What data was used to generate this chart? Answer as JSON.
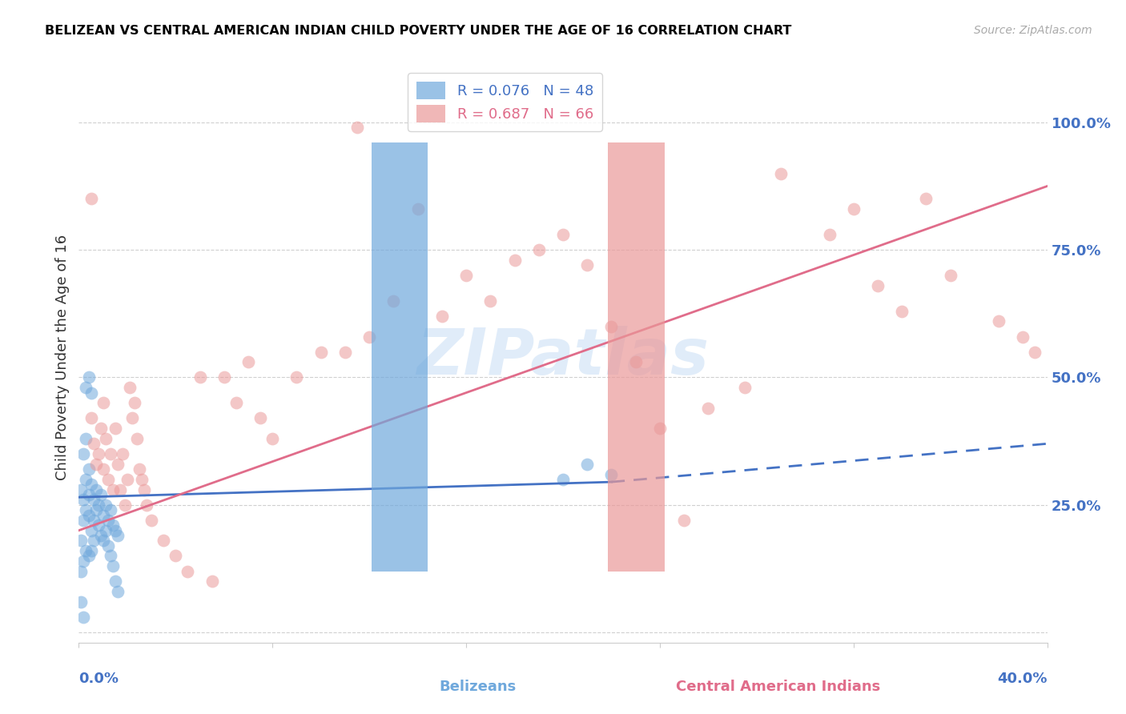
{
  "title": "BELIZEAN VS CENTRAL AMERICAN INDIAN CHILD POVERTY UNDER THE AGE OF 16 CORRELATION CHART",
  "source": "Source: ZipAtlas.com",
  "ylabel": "Child Poverty Under the Age of 16",
  "xlim": [
    0.0,
    0.4
  ],
  "ylim": [
    -0.02,
    1.1
  ],
  "yticks": [
    0.0,
    0.25,
    0.5,
    0.75,
    1.0
  ],
  "ytick_labels": [
    "",
    "25.0%",
    "50.0%",
    "75.0%",
    "100.0%"
  ],
  "watermark": "ZIPatlas",
  "belizean_color": "#6fa8dc",
  "cai_color": "#ea9999",
  "blue_line_color": "#4472c4",
  "pink_line_color": "#e06c8a",
  "axis_label_color": "#4472c4",
  "grid_color": "#d0d0d0",
  "background_color": "#ffffff",
  "title_color": "#000000",
  "source_color": "#aaaaaa",
  "bel_line_start_x": 0.0,
  "bel_line_end_solid_x": 0.22,
  "bel_line_end_x": 0.4,
  "bel_line_y_at_0": 0.265,
  "bel_line_y_at_022": 0.295,
  "bel_line_y_at_040": 0.37,
  "cai_line_y_at_0": 0.2,
  "cai_line_y_at_040": 0.875,
  "belizean_points": [
    [
      0.001,
      0.28
    ],
    [
      0.002,
      0.26
    ],
    [
      0.002,
      0.22
    ],
    [
      0.003,
      0.3
    ],
    [
      0.003,
      0.24
    ],
    [
      0.004,
      0.27
    ],
    [
      0.004,
      0.23
    ],
    [
      0.005,
      0.29
    ],
    [
      0.005,
      0.2
    ],
    [
      0.006,
      0.26
    ],
    [
      0.006,
      0.22
    ],
    [
      0.007,
      0.28
    ],
    [
      0.007,
      0.24
    ],
    [
      0.008,
      0.25
    ],
    [
      0.008,
      0.21
    ],
    [
      0.009,
      0.27
    ],
    [
      0.009,
      0.19
    ],
    [
      0.01,
      0.23
    ],
    [
      0.01,
      0.18
    ],
    [
      0.011,
      0.25
    ],
    [
      0.011,
      0.2
    ],
    [
      0.012,
      0.22
    ],
    [
      0.012,
      0.17
    ],
    [
      0.013,
      0.24
    ],
    [
      0.013,
      0.15
    ],
    [
      0.014,
      0.21
    ],
    [
      0.014,
      0.13
    ],
    [
      0.015,
      0.2
    ],
    [
      0.015,
      0.1
    ],
    [
      0.016,
      0.19
    ],
    [
      0.016,
      0.08
    ],
    [
      0.003,
      0.48
    ],
    [
      0.004,
      0.5
    ],
    [
      0.005,
      0.47
    ],
    [
      0.002,
      0.35
    ],
    [
      0.002,
      0.03
    ],
    [
      0.001,
      0.18
    ],
    [
      0.001,
      0.12
    ],
    [
      0.003,
      0.16
    ],
    [
      0.003,
      0.38
    ],
    [
      0.004,
      0.32
    ],
    [
      0.004,
      0.15
    ],
    [
      0.001,
      0.06
    ],
    [
      0.002,
      0.14
    ],
    [
      0.005,
      0.16
    ],
    [
      0.006,
      0.18
    ],
    [
      0.2,
      0.3
    ],
    [
      0.21,
      0.33
    ],
    [
      0.22,
      0.31
    ]
  ],
  "cai_points": [
    [
      0.005,
      0.42
    ],
    [
      0.006,
      0.37
    ],
    [
      0.007,
      0.33
    ],
    [
      0.008,
      0.35
    ],
    [
      0.009,
      0.4
    ],
    [
      0.01,
      0.32
    ],
    [
      0.01,
      0.45
    ],
    [
      0.011,
      0.38
    ],
    [
      0.012,
      0.3
    ],
    [
      0.013,
      0.35
    ],
    [
      0.014,
      0.28
    ],
    [
      0.015,
      0.4
    ],
    [
      0.016,
      0.33
    ],
    [
      0.017,
      0.28
    ],
    [
      0.018,
      0.35
    ],
    [
      0.019,
      0.25
    ],
    [
      0.02,
      0.3
    ],
    [
      0.021,
      0.48
    ],
    [
      0.022,
      0.42
    ],
    [
      0.023,
      0.45
    ],
    [
      0.024,
      0.38
    ],
    [
      0.025,
      0.32
    ],
    [
      0.026,
      0.3
    ],
    [
      0.027,
      0.28
    ],
    [
      0.028,
      0.25
    ],
    [
      0.03,
      0.22
    ],
    [
      0.035,
      0.18
    ],
    [
      0.04,
      0.15
    ],
    [
      0.045,
      0.12
    ],
    [
      0.055,
      0.1
    ],
    [
      0.06,
      0.5
    ],
    [
      0.065,
      0.45
    ],
    [
      0.07,
      0.53
    ],
    [
      0.08,
      0.38
    ],
    [
      0.09,
      0.5
    ],
    [
      0.1,
      0.55
    ],
    [
      0.11,
      0.55
    ],
    [
      0.12,
      0.58
    ],
    [
      0.05,
      0.5
    ],
    [
      0.075,
      0.42
    ],
    [
      0.13,
      0.65
    ],
    [
      0.14,
      0.83
    ],
    [
      0.15,
      0.62
    ],
    [
      0.16,
      0.7
    ],
    [
      0.17,
      0.65
    ],
    [
      0.18,
      0.73
    ],
    [
      0.19,
      0.75
    ],
    [
      0.2,
      0.78
    ],
    [
      0.21,
      0.72
    ],
    [
      0.22,
      0.6
    ],
    [
      0.23,
      0.53
    ],
    [
      0.115,
      0.99
    ],
    [
      0.25,
      0.22
    ],
    [
      0.26,
      0.44
    ],
    [
      0.275,
      0.48
    ],
    [
      0.29,
      0.9
    ],
    [
      0.31,
      0.78
    ],
    [
      0.32,
      0.83
    ],
    [
      0.33,
      0.68
    ],
    [
      0.34,
      0.63
    ],
    [
      0.35,
      0.85
    ],
    [
      0.36,
      0.7
    ],
    [
      0.38,
      0.61
    ],
    [
      0.39,
      0.58
    ],
    [
      0.395,
      0.55
    ],
    [
      0.005,
      0.85
    ],
    [
      0.24,
      0.4
    ]
  ]
}
